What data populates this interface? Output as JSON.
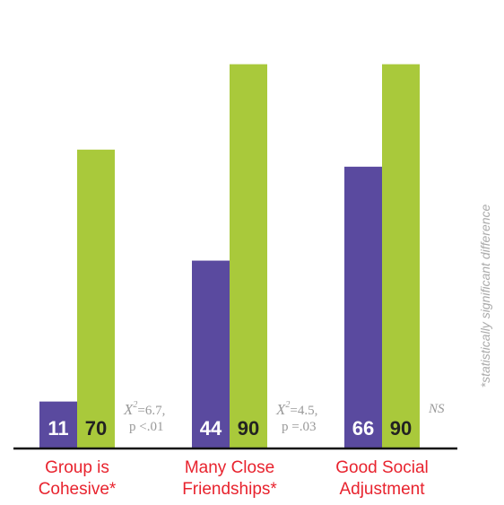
{
  "chart_data": {
    "type": "bar",
    "categories": [
      "Group is Cohesive*",
      "Many Close Friendships*",
      "Good Social Adjustment"
    ],
    "series": [
      {
        "color": "#5a4a9f",
        "values": [
          11,
          44,
          66
        ]
      },
      {
        "color": "#a9c93b",
        "values": [
          70,
          90,
          90
        ]
      }
    ],
    "ylim": [
      0,
      100
    ],
    "annotations": [
      {
        "chi": "X",
        "sup": "2",
        "stat": "=6.7,",
        "p": "p <.01"
      },
      {
        "chi": "X",
        "sup": "2",
        "stat": "=4.5,",
        "p": "p =.03"
      },
      {
        "text": "NS"
      }
    ],
    "note": "*statistically significant difference"
  }
}
